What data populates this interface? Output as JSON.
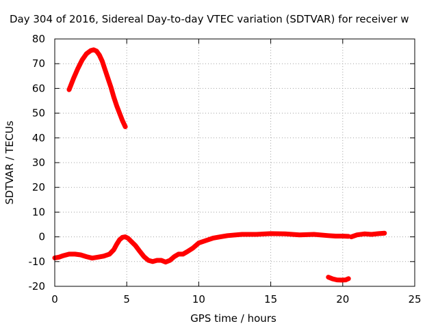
{
  "chart_data": {
    "type": "line",
    "title": "Day 304 of 2016, Sidereal Day-to-day VTEC variation (SDTVAR) for receiver w",
    "xlabel": "GPS time / hours",
    "ylabel": "SDTVAR / TECUs",
    "xlim": [
      0,
      25
    ],
    "ylim": [
      -20,
      80
    ],
    "xticks": [
      0,
      5,
      10,
      15,
      20,
      25
    ],
    "yticks": [
      -20,
      -10,
      0,
      10,
      20,
      30,
      40,
      50,
      60,
      70,
      80
    ],
    "xtick_labels": [
      "0",
      "5",
      "10",
      "15",
      "20",
      "25"
    ],
    "ytick_labels": [
      "-20",
      "-10",
      "0",
      "10",
      "20",
      "30",
      "40",
      "50",
      "60",
      "70",
      "80"
    ],
    "grid": true,
    "legend": "none",
    "series_color": "#ff0000",
    "series": [
      {
        "x": [
          1.0,
          1.3,
          1.6,
          1.9,
          2.2,
          2.5,
          2.7,
          2.9,
          3.1,
          3.3,
          3.5,
          3.7,
          3.9,
          4.1,
          4.3,
          4.5,
          4.7,
          4.9
        ],
        "y": [
          59.5,
          64,
          68,
          71.5,
          74,
          75.3,
          75.6,
          75.1,
          73.5,
          71,
          67.5,
          64,
          60.5,
          56.5,
          53,
          50,
          47,
          44.5
        ]
      },
      {
        "x": [
          0.0,
          0.3,
          0.6,
          1.0,
          1.4,
          1.8,
          2.2,
          2.6,
          3.0,
          3.4,
          3.8,
          4.1,
          4.3,
          4.5,
          4.7,
          4.9,
          5.1,
          5.3,
          5.6,
          5.9,
          6.2,
          6.5,
          6.8,
          7.1,
          7.4,
          7.7,
          8.0,
          8.3,
          8.6,
          8.9,
          9.2,
          9.6,
          10.0,
          10.5,
          11.0,
          11.5,
          12.0,
          13.0,
          14.0,
          15.0,
          16.0,
          17.0,
          18.0,
          19.0,
          19.5,
          20.0,
          20.4
        ],
        "y": [
          -8.5,
          -8.2,
          -7.6,
          -7.0,
          -7.0,
          -7.3,
          -8.0,
          -8.6,
          -8.2,
          -7.8,
          -7.0,
          -5.2,
          -3.0,
          -1.2,
          -0.2,
          0.0,
          -0.6,
          -1.8,
          -3.5,
          -5.8,
          -8.0,
          -9.5,
          -10.0,
          -9.5,
          -9.5,
          -10.2,
          -9.5,
          -8.0,
          -7.0,
          -7.0,
          -6.0,
          -4.5,
          -2.5,
          -1.5,
          -0.5,
          0.0,
          0.5,
          1.0,
          1.0,
          1.3,
          1.2,
          0.8,
          1.0,
          0.5,
          0.3,
          0.3,
          0.2
        ]
      },
      {
        "x": [
          20.6,
          21.0,
          21.5,
          22.0,
          22.5,
          22.9
        ],
        "y": [
          0.0,
          0.8,
          1.2,
          1.0,
          1.3,
          1.5
        ]
      },
      {
        "x": [
          19.0,
          19.3,
          19.6,
          19.9,
          20.2,
          20.4
        ],
        "y": [
          -16.3,
          -17.0,
          -17.4,
          -17.5,
          -17.4,
          -16.9
        ]
      }
    ]
  }
}
